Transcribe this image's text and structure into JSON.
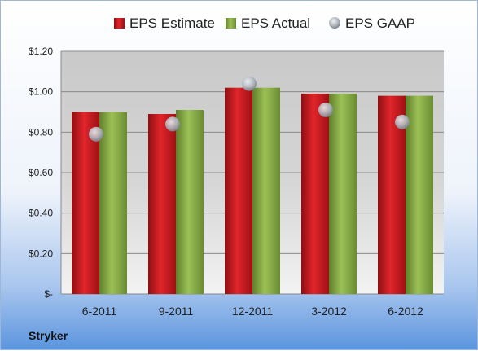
{
  "company": "Stryker",
  "chart_data": {
    "type": "bar",
    "categories": [
      "6-2011",
      "9-2011",
      "12-2011",
      "3-2012",
      "6-2012"
    ],
    "series": [
      {
        "name": "EPS Estimate",
        "kind": "bar",
        "color": "#c8141a",
        "values": [
          0.9,
          0.89,
          1.02,
          0.99,
          0.98
        ]
      },
      {
        "name": "EPS Actual",
        "kind": "bar",
        "color": "#8db04a",
        "values": [
          0.9,
          0.91,
          1.02,
          0.99,
          0.98
        ]
      },
      {
        "name": "EPS GAAP",
        "kind": "marker",
        "color": "#b7bcc4",
        "values": [
          0.79,
          0.84,
          1.04,
          0.91,
          0.85
        ]
      }
    ],
    "ylim": [
      0,
      1.2
    ],
    "yticks": [
      0,
      0.2,
      0.4,
      0.6,
      0.8,
      1.0,
      1.2
    ],
    "ytick_labels": [
      "$-",
      "$0.20",
      "$0.40",
      "$0.60",
      "$0.80",
      "$1.00",
      "$1.20"
    ],
    "grid": true,
    "legend_position": "top"
  }
}
